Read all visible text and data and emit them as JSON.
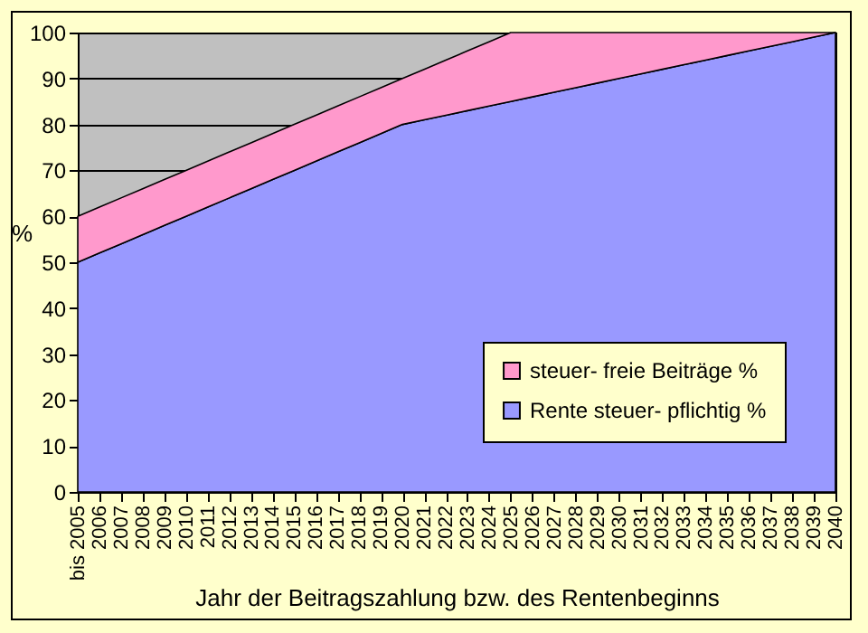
{
  "chart_data": {
    "type": "area",
    "stacked": true,
    "xlabel": "Jahr der Beitragszahlung bzw. des Rentenbeginns",
    "ylabel": "%",
    "categories": [
      "bis 2005",
      "2006",
      "2007",
      "2008",
      "2009",
      "2010",
      "2011",
      "2012",
      "2013",
      "2014",
      "2015",
      "2016",
      "2017",
      "2018",
      "2019",
      "2020",
      "2021",
      "2022",
      "2023",
      "2024",
      "2025",
      "2026",
      "2027",
      "2028",
      "2029",
      "2030",
      "2031",
      "2032",
      "2033",
      "2034",
      "2035",
      "2036",
      "2037",
      "2038",
      "2039",
      "2040"
    ],
    "series": [
      {
        "name": "Rente steuer- pflichtig %",
        "color": "#9999ff",
        "values": [
          50,
          52,
          54,
          56,
          58,
          60,
          62,
          64,
          66,
          68,
          70,
          72,
          74,
          76,
          78,
          80,
          81,
          82,
          83,
          84,
          85,
          86,
          87,
          88,
          89,
          90,
          91,
          92,
          93,
          94,
          95,
          96,
          97,
          98,
          99,
          100
        ]
      },
      {
        "name": "steuer- freie  Beiträge %",
        "color": "#ff99cc",
        "values": [
          10,
          10,
          10,
          10,
          10,
          10,
          10,
          10,
          10,
          10,
          10,
          10,
          10,
          10,
          10,
          10,
          11,
          12,
          13,
          14,
          15,
          14,
          13,
          12,
          11,
          10,
          9,
          8,
          7,
          6,
          5,
          4,
          3,
          2,
          1,
          0
        ]
      }
    ],
    "ylim": [
      0,
      100
    ],
    "yticks": [
      0,
      10,
      20,
      30,
      40,
      50,
      60,
      70,
      80,
      90,
      100
    ],
    "grid": "y",
    "legend": "bottom right"
  }
}
